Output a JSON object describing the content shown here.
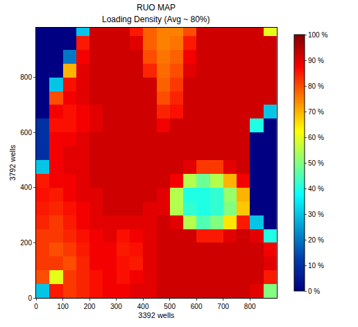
{
  "chart_data": {
    "type": "heatmap",
    "title": "RUO MAP",
    "subtitle": "Loading Density (Avg ~ 80%)",
    "x_label": "3392 wells",
    "y_label": "3792 wells",
    "color": "Jet",
    "grid": false,
    "xlim": [
      0,
      900
    ],
    "ylim": [
      0,
      980
    ],
    "xticks": [
      0,
      100,
      200,
      300,
      400,
      500,
      600,
      700,
      800
    ],
    "yticks": [
      0,
      200,
      400,
      600,
      800
    ],
    "colorbar_range": [
      0,
      100
    ],
    "colorbar_ticks": [
      {
        "value": 0,
        "label": "0 %"
      },
      {
        "value": 10,
        "label": "10 %"
      },
      {
        "value": 20,
        "label": "20 %"
      },
      {
        "value": 30,
        "label": "30 %"
      },
      {
        "value": 40,
        "label": "40 %"
      },
      {
        "value": 50,
        "label": "50 %"
      },
      {
        "value": 60,
        "label": "60 %"
      },
      {
        "value": 70,
        "label": "70 %"
      },
      {
        "value": 80,
        "label": "80 %"
      },
      {
        "value": 90,
        "label": "90 %"
      },
      {
        "value": 100,
        "label": "100 %"
      }
    ],
    "x": [
      25,
      75,
      125,
      175,
      225,
      275,
      325,
      375,
      425,
      475,
      525,
      575,
      625,
      675,
      725,
      775,
      825,
      875
    ],
    "y": [
      25,
      75,
      125,
      175,
      225,
      275,
      325,
      375,
      425,
      475,
      525,
      575,
      625,
      675,
      725,
      775,
      825,
      875,
      925,
      975
    ],
    "z": [
      [
        30,
        85,
        82,
        84,
        86,
        88,
        88,
        90,
        90,
        92,
        92,
        92,
        92,
        92,
        92,
        92,
        90,
        50
      ],
      [
        80,
        60,
        82,
        84,
        86,
        88,
        86,
        88,
        90,
        92,
        92,
        92,
        92,
        92,
        92,
        92,
        92,
        85
      ],
      [
        82,
        82,
        80,
        84,
        88,
        88,
        86,
        85,
        90,
        92,
        92,
        92,
        92,
        92,
        92,
        92,
        92,
        90
      ],
      [
        82,
        80,
        82,
        85,
        88,
        88,
        85,
        86,
        90,
        92,
        92,
        92,
        92,
        92,
        92,
        92,
        92,
        88
      ],
      [
        82,
        82,
        84,
        86,
        88,
        90,
        86,
        88,
        90,
        92,
        92,
        92,
        85,
        85,
        90,
        92,
        90,
        40
      ],
      [
        84,
        82,
        85,
        88,
        90,
        90,
        90,
        90,
        90,
        92,
        90,
        55,
        45,
        50,
        65,
        85,
        30,
        0
      ],
      [
        85,
        84,
        86,
        88,
        90,
        92,
        92,
        92,
        90,
        90,
        55,
        42,
        40,
        42,
        50,
        68,
        0,
        0
      ],
      [
        86,
        85,
        88,
        90,
        90,
        92,
        92,
        92,
        92,
        90,
        55,
        40,
        40,
        42,
        52,
        70,
        0,
        0
      ],
      [
        85,
        88,
        88,
        90,
        92,
        92,
        92,
        92,
        92,
        92,
        88,
        55,
        48,
        55,
        70,
        88,
        0,
        0
      ],
      [
        30,
        88,
        90,
        90,
        92,
        92,
        92,
        92,
        92,
        92,
        92,
        90,
        82,
        82,
        90,
        92,
        0,
        0
      ],
      [
        10,
        88,
        90,
        90,
        92,
        92,
        92,
        92,
        92,
        92,
        92,
        92,
        92,
        92,
        92,
        92,
        0,
        0
      ],
      [
        10,
        88,
        88,
        90,
        92,
        92,
        92,
        92,
        92,
        92,
        92,
        92,
        92,
        92,
        92,
        92,
        0,
        0
      ],
      [
        10,
        86,
        86,
        88,
        90,
        92,
        92,
        92,
        92,
        88,
        92,
        92,
        92,
        92,
        92,
        92,
        40,
        0
      ],
      [
        0,
        88,
        86,
        88,
        90,
        92,
        92,
        92,
        92,
        84,
        86,
        92,
        92,
        92,
        92,
        92,
        92,
        30
      ],
      [
        0,
        80,
        88,
        90,
        92,
        92,
        92,
        92,
        92,
        80,
        84,
        92,
        92,
        92,
        92,
        92,
        92,
        92
      ],
      [
        0,
        30,
        86,
        90,
        92,
        92,
        92,
        92,
        92,
        78,
        82,
        92,
        92,
        92,
        92,
        92,
        92,
        92
      ],
      [
        0,
        0,
        70,
        90,
        92,
        92,
        92,
        92,
        84,
        77,
        80,
        90,
        92,
        92,
        92,
        92,
        92,
        92
      ],
      [
        0,
        0,
        20,
        88,
        92,
        92,
        92,
        92,
        80,
        76,
        78,
        88,
        92,
        92,
        92,
        92,
        92,
        92
      ],
      [
        0,
        0,
        0,
        85,
        92,
        92,
        92,
        90,
        78,
        75,
        76,
        85,
        92,
        92,
        92,
        92,
        92,
        92
      ],
      [
        0,
        0,
        0,
        30,
        92,
        92,
        92,
        85,
        78,
        75,
        75,
        80,
        92,
        92,
        92,
        92,
        92,
        60
      ]
    ]
  }
}
